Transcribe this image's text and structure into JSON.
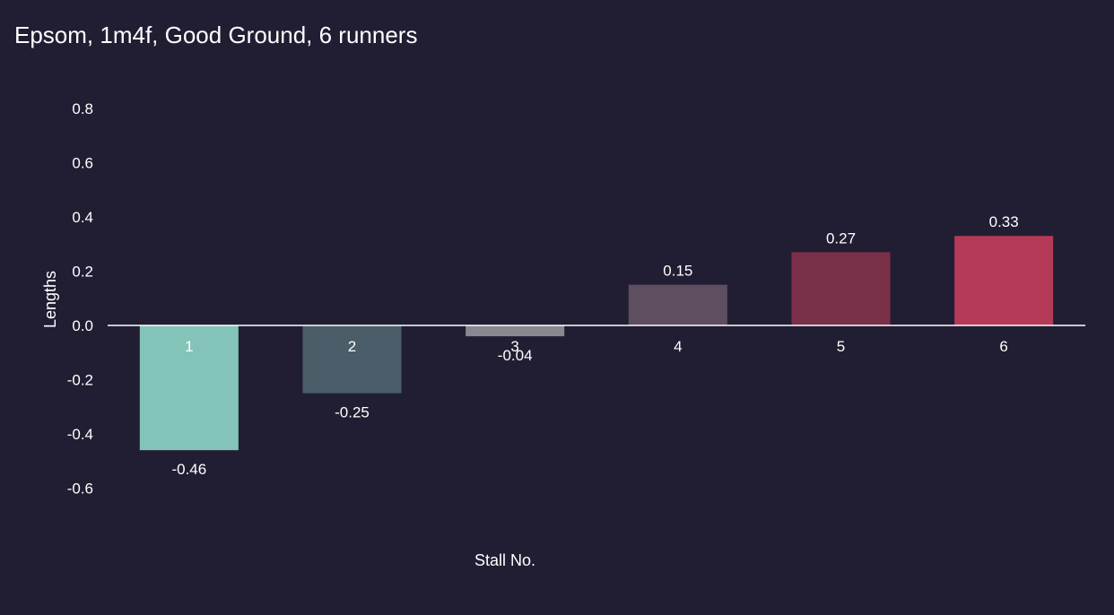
{
  "chart_data": {
    "type": "bar",
    "title": "Epsom, 1m4f, Good Ground, 6 runners",
    "xlabel": "Stall No.",
    "ylabel": "Lengths",
    "categories": [
      "1",
      "2",
      "3",
      "4",
      "5",
      "6"
    ],
    "values": [
      -0.46,
      -0.25,
      -0.04,
      0.15,
      0.27,
      0.33
    ],
    "value_labels": [
      "-0.46",
      "-0.25",
      "-0.04",
      "0.15",
      "0.27",
      "0.33"
    ],
    "bar_colors": [
      "#84c3b8",
      "#4a5d68",
      "#8a8790",
      "#5f4d60",
      "#7a3048",
      "#b53a57"
    ],
    "ylim": [
      -0.6,
      0.8
    ],
    "yticks": [
      -0.6,
      -0.4,
      -0.2,
      0.0,
      0.2,
      0.4,
      0.6,
      0.8
    ],
    "ytick_labels": [
      "-0.6",
      "-0.4",
      "-0.2",
      "0.0",
      "0.2",
      "0.4",
      "0.6",
      "0.8"
    ],
    "grid": false,
    "legend": "none",
    "colors": {
      "background": "#211e33",
      "text": "#ffffff",
      "zero_line": "#ffffff"
    }
  }
}
